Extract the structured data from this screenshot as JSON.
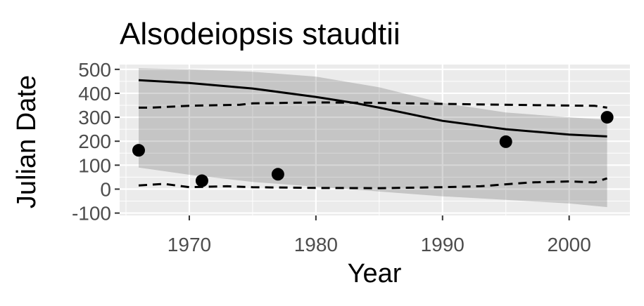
{
  "chart_data": {
    "type": "line",
    "title": "Alsodeiopsis staudtii",
    "xlabel": "Year",
    "ylabel": "Julian Date",
    "xlim": [
      1964.5,
      2004.8
    ],
    "ylim": [
      -110,
      520
    ],
    "x_ticks": [
      1970,
      1980,
      1990,
      2000
    ],
    "y_ticks": [
      -100,
      0,
      100,
      200,
      300,
      400,
      500
    ],
    "x_tick_labels": [
      "1970",
      "1980",
      "1990",
      "2000"
    ],
    "y_tick_labels": [
      "-100",
      "0",
      "100",
      "200",
      "300",
      "400",
      "500"
    ],
    "grid": true,
    "legend": "none",
    "series": [
      {
        "name": "observations",
        "kind": "points",
        "x": [
          1966,
          1971,
          1977,
          1995,
          2003
        ],
        "y": [
          162,
          35,
          62,
          198,
          300
        ]
      },
      {
        "name": "fit",
        "kind": "line",
        "x": [
          1966,
          1970,
          1975,
          1980,
          1983,
          1985,
          1990,
          1995,
          2000,
          2003
        ],
        "y": [
          455,
          443,
          420,
          385,
          360,
          340,
          285,
          250,
          228,
          220
        ]
      },
      {
        "name": "upper quantile",
        "kind": "dashed",
        "x": [
          1966,
          1967,
          1970,
          1974,
          1975,
          1980,
          1985,
          1990,
          1995,
          2000,
          2002,
          2003
        ],
        "y": [
          340,
          340,
          348,
          352,
          358,
          362,
          360,
          356,
          352,
          349,
          348,
          340
        ]
      },
      {
        "name": "lower quantile",
        "kind": "dashed",
        "x": [
          1966,
          1968,
          1970,
          1973,
          1975,
          1980,
          1985,
          1990,
          1993,
          1995,
          1997,
          2000,
          2002,
          2003
        ],
        "y": [
          15,
          22,
          8,
          12,
          8,
          5,
          4,
          8,
          12,
          20,
          28,
          32,
          28,
          45
        ]
      },
      {
        "name": "confidence band",
        "kind": "band",
        "x": [
          1966,
          1970,
          1975,
          1980,
          1985,
          1990,
          1995,
          2000,
          2003
        ],
        "upper": [
          505,
          500,
          490,
          470,
          425,
          360,
          320,
          300,
          290
        ],
        "lower": [
          90,
          60,
          30,
          10,
          -10,
          -30,
          -45,
          -60,
          -75
        ]
      }
    ]
  }
}
